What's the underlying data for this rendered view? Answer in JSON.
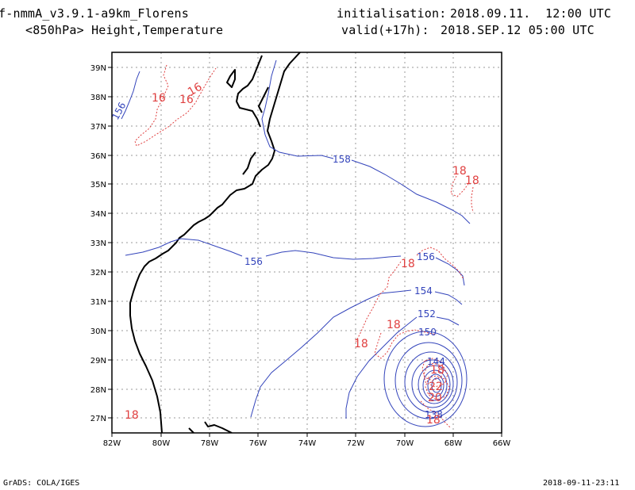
{
  "header": {
    "model": "f-nmmA_v3.9.1-a9km_Florens",
    "fields": "<850hPa> Height,Temperature",
    "init_label": "initialisation:",
    "init_value": "2018.09.11.  12:00 UTC",
    "valid_label": "valid(+17h):",
    "valid_value": "2018.SEP.12 05:00 UTC"
  },
  "footer": {
    "software": "GrADS: COLA/IGES",
    "timestamp": "2018-09-11-23:11"
  },
  "map": {
    "lon_range": [
      -82,
      -66
    ],
    "lat_range": [
      26.6,
      39.6
    ],
    "x_ticks": [
      "82W",
      "80W",
      "78W",
      "76W",
      "74W",
      "72W",
      "70W",
      "68W",
      "66W"
    ],
    "y_ticks": [
      "39N",
      "38N",
      "37N",
      "36N",
      "35N",
      "34N",
      "33N",
      "32N",
      "31N",
      "30N",
      "29N",
      "28N",
      "27N"
    ],
    "colors": {
      "height": "#3344bb",
      "temperature": "#e04040",
      "coast": "#000000",
      "grid": "#999999"
    },
    "height_labels": [
      "156",
      "158",
      "156",
      "156",
      "154",
      "152",
      "150",
      "144",
      "138"
    ],
    "temp_labels": [
      "16",
      "16",
      "16",
      "18",
      "18",
      "18",
      "18",
      "18",
      "18",
      "22",
      "20",
      "18",
      "18"
    ]
  }
}
